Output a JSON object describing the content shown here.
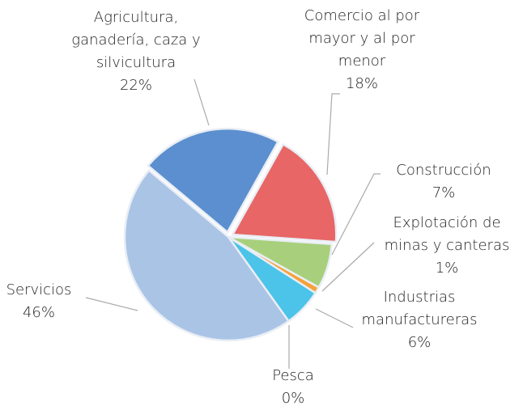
{
  "chart_data": {
    "type": "pie",
    "categories": [
      "Agricultura, ganadería, caza y silvicultura",
      "Comercio al por mayor y al por menor",
      "Construcción",
      "Explotación de minas y canteras",
      "Industrias manufactureras",
      "Pesca",
      "Servicios"
    ],
    "values": [
      22,
      18,
      7,
      1,
      6,
      0,
      46
    ],
    "value_labels": [
      "22%",
      "18%",
      "7%",
      "1%",
      "6%",
      "0%",
      "46%"
    ],
    "colors": [
      "#5b8fcf",
      "#e86666",
      "#a8d07c",
      "#f5a23a",
      "#4cc3e8",
      "#7fb3e0",
      "#aac4e6"
    ]
  }
}
